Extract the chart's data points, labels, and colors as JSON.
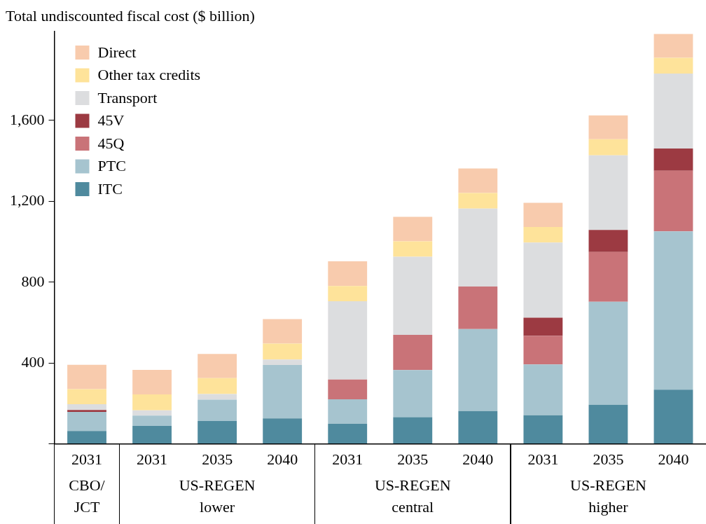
{
  "chart_data": {
    "type": "bar",
    "stacked": true,
    "ylabel": "Total undiscounted fiscal cost ($ billion)",
    "categories": [
      "2031",
      "2031",
      "2035",
      "2040",
      "2031",
      "2035",
      "2040",
      "2031",
      "2035",
      "2040"
    ],
    "series": [
      {
        "name": "ITC",
        "color": "#4f8a9e",
        "values": [
          64,
          89,
          113,
          126,
          99,
          132,
          162,
          142,
          194,
          268
        ]
      },
      {
        "name": "PTC",
        "color": "#a6c4cf",
        "values": [
          94,
          51,
          106,
          264,
          121,
          233,
          406,
          251,
          509,
          783
        ]
      },
      {
        "name": "45Q",
        "color": "#c97378",
        "values": [
          0,
          0,
          0,
          0,
          98,
          174,
          210,
          141,
          246,
          300
        ]
      },
      {
        "name": "45V",
        "color": "#9c3a42",
        "values": [
          10,
          0,
          0,
          0,
          0,
          0,
          0,
          90,
          109,
          110
        ]
      },
      {
        "name": "Transport",
        "color": "#dcdddf",
        "values": [
          28,
          26,
          27,
          27,
          388,
          387,
          386,
          372,
          369,
          371
        ]
      },
      {
        "name": "Other tax credits",
        "color": "#fee39a",
        "values": [
          75,
          79,
          79,
          79,
          75,
          76,
          77,
          77,
          80,
          78
        ]
      },
      {
        "name": "Direct",
        "color": "#f8cbad",
        "values": [
          120,
          121,
          120,
          121,
          122,
          121,
          121,
          120,
          118,
          118
        ]
      }
    ],
    "ylim": [
      0,
      2040
    ],
    "yticks": [
      {
        "value": 0,
        "label": null
      },
      400,
      800,
      {
        "value": 1200,
        "label": "1,200"
      },
      {
        "value": 1600,
        "label": "1,600"
      }
    ],
    "grid": false,
    "legend": "top left",
    "annotations": [
      "CBO/\nJCT",
      "US-REGEN\nlower",
      "US-REGEN\ncentral",
      "US-REGEN\nhigher"
    ]
  }
}
